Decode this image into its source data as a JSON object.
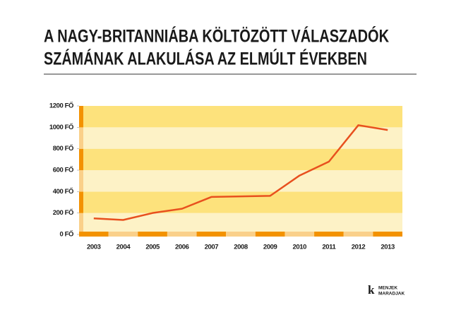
{
  "chart_data": {
    "type": "line",
    "title": [
      "A NAGY-BRITANNIÁBA KÖLTÖZÖTT VÁLASZADÓK",
      "SZÁMÁNAK ALAKULÁSA AZ ELMÚLT ÉVEKBEN"
    ],
    "categories": [
      "2003",
      "2004",
      "2005",
      "2006",
      "2007",
      "2008",
      "2009",
      "2010",
      "2011",
      "2012",
      "2013"
    ],
    "values": [
      150,
      135,
      200,
      240,
      350,
      355,
      360,
      550,
      680,
      1020,
      975
    ],
    "color": "#e8501e",
    "ylim": [
      0,
      1200
    ],
    "yticks": [
      {
        "value": 0,
        "label": "0 FŐ"
      },
      {
        "value": 200,
        "label": "200 FŐ"
      },
      {
        "value": 400,
        "label": "400 FŐ"
      },
      {
        "value": 600,
        "label": "600 FŐ"
      },
      {
        "value": 800,
        "label": "800 FŐ"
      },
      {
        "value": 1000,
        "label": "1000 FŐ"
      },
      {
        "value": 1200,
        "label": "1200 FŐ"
      }
    ],
    "logo": {
      "mark": "k",
      "lines": [
        "MENJEK",
        "MARADJAK"
      ]
    }
  }
}
